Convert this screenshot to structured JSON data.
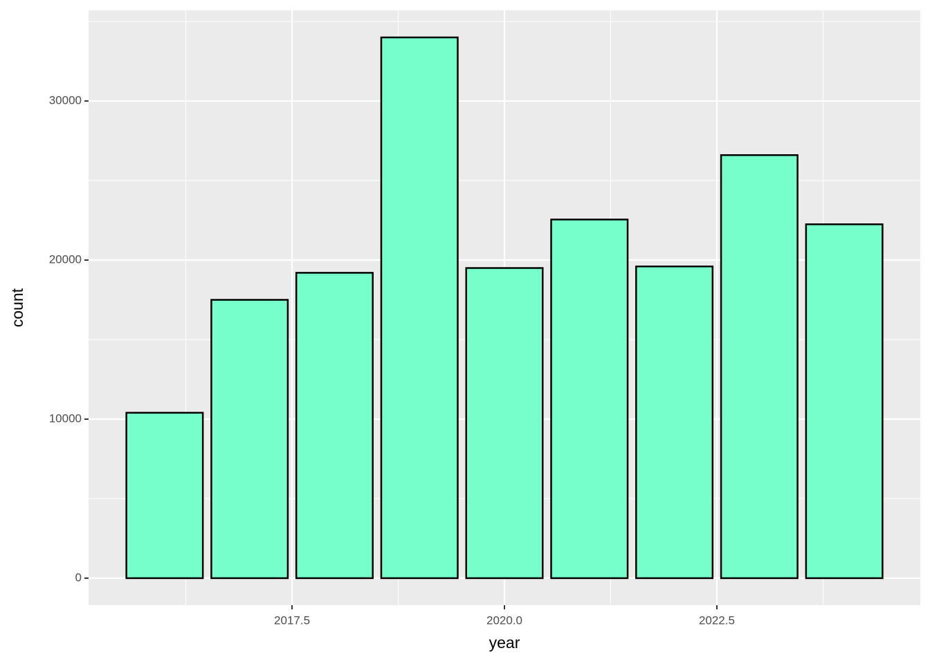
{
  "chart_data": {
    "type": "bar",
    "x_label": "year",
    "y_label": "count",
    "x": [
      2016,
      2017,
      2018,
      2019,
      2020,
      2021,
      2022,
      2023,
      2024
    ],
    "values": [
      10400,
      17500,
      19200,
      34000,
      19500,
      22550,
      19600,
      26600,
      22250
    ],
    "color": "#76ffcb",
    "edge_color": "#000000",
    "xlim": [
      2015.105,
      2024.895
    ],
    "xticks": [
      2017.5,
      {
        "value": 2020,
        "label": "2020.0"
      },
      2022.5
    ],
    "x_minor_ticks": [
      2016.25,
      2018.75,
      2021.25,
      2023.75
    ],
    "ylim": [
      -1700,
      35700
    ],
    "yticks": [
      0,
      10000,
      20000,
      30000
    ],
    "y_minor_ticks": [
      5000,
      15000,
      25000,
      35000
    ],
    "grid": true
  }
}
